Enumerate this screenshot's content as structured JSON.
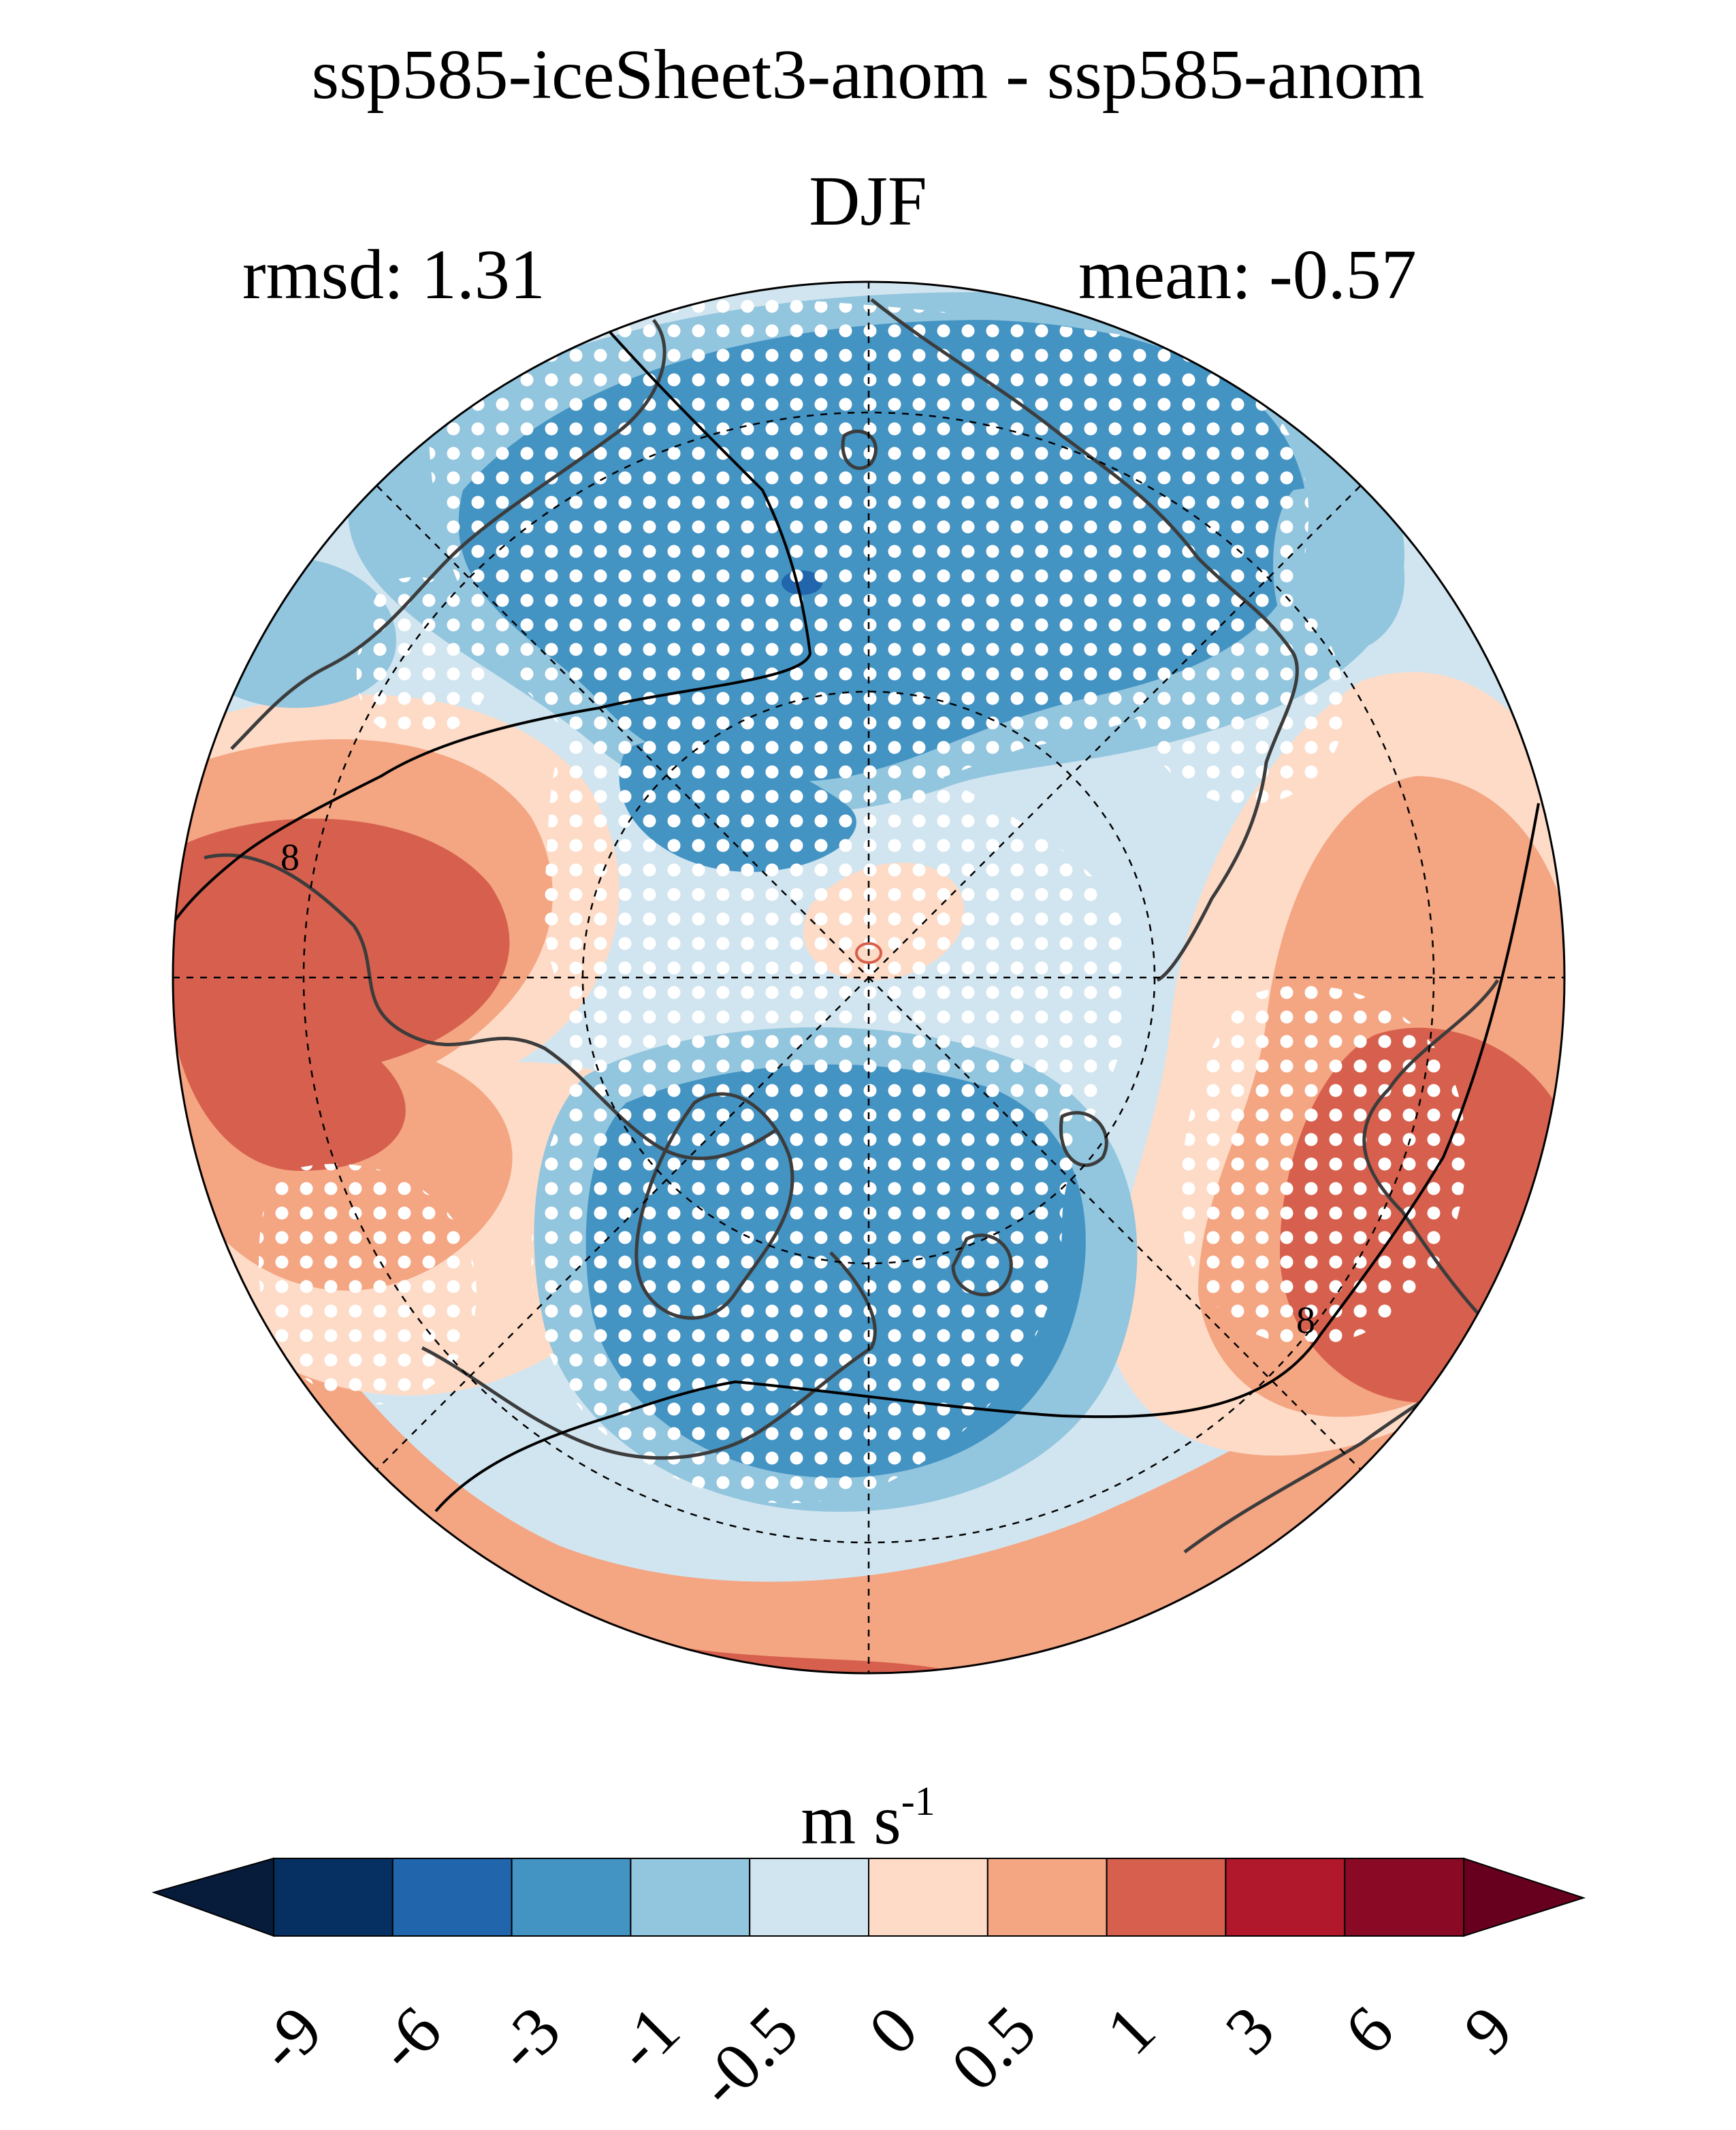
{
  "figure": {
    "title_line1": "ssp585-iceSheet3-anom - ssp585-anom",
    "title_line2": "DJF",
    "rmsd_label": "rmsd: 1.31",
    "mean_label": "mean: -0.57"
  },
  "colorbar": {
    "units_base": "m s",
    "units_exponent": "-1",
    "ticks": [
      "-9",
      "-6",
      "-3",
      "-1",
      "-0.5",
      "0",
      "0.5",
      "1",
      "3",
      "6",
      "9"
    ],
    "under_color": "#071c3b",
    "over_color": "#67001f",
    "colors": [
      "#053061",
      "#2166ac",
      "#4393c3",
      "#92c5de",
      "#d1e5f0",
      "#fddbc7",
      "#f4a582",
      "#d6604d",
      "#b2182b",
      "#8a0a26"
    ]
  },
  "map": {
    "projection": "north-polar-stereographic",
    "contour_labels": [
      "8",
      "8"
    ],
    "stippling": "white dots"
  }
}
